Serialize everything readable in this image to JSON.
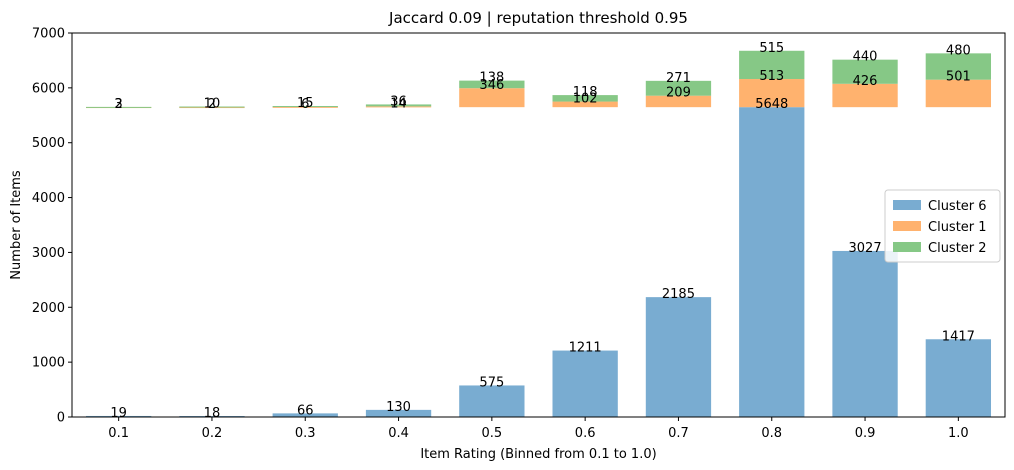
{
  "chart_data": {
    "type": "bar",
    "title": "Jaccard 0.09 | reputation threshold 0.95",
    "xlabel": "Item Rating (Binned from 0.1 to 1.0)",
    "ylabel": "Number of Items",
    "categories": [
      "0.1",
      "0.2",
      "0.3",
      "0.4",
      "0.5",
      "0.6",
      "0.7",
      "0.8",
      "0.9",
      "1.0"
    ],
    "ylim": [
      0,
      7000
    ],
    "yticks": [
      "0",
      "1000",
      "2000",
      "3000",
      "4000",
      "5000",
      "6000",
      "7000"
    ],
    "stack_base": 5648,
    "series": [
      {
        "name": "Cluster 6",
        "color": "#79acd1",
        "values": [
          19,
          18,
          66,
          130,
          575,
          1211,
          2185,
          5648,
          3027,
          1417
        ],
        "stacked": false
      },
      {
        "name": "Cluster 1",
        "color": "#ffb26e",
        "values": [
          2,
          2,
          6,
          14,
          346,
          102,
          209,
          513,
          426,
          501
        ],
        "stacked": true
      },
      {
        "name": "Cluster 2",
        "color": "#86c886",
        "values": [
          3,
          10,
          15,
          36,
          138,
          118,
          271,
          515,
          440,
          480
        ],
        "stacked": true
      }
    ],
    "legend_position": "center-right",
    "grid": false
  }
}
